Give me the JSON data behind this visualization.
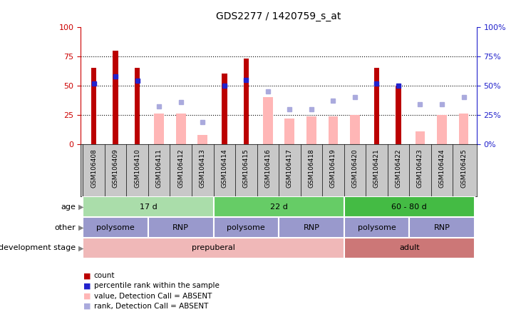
{
  "title": "GDS2277 / 1420759_s_at",
  "samples": [
    "GSM106408",
    "GSM106409",
    "GSM106410",
    "GSM106411",
    "GSM106412",
    "GSM106413",
    "GSM106414",
    "GSM106415",
    "GSM106416",
    "GSM106417",
    "GSM106418",
    "GSM106419",
    "GSM106420",
    "GSM106421",
    "GSM106422",
    "GSM106423",
    "GSM106424",
    "GSM106425"
  ],
  "red_bars": [
    65,
    80,
    65,
    0,
    0,
    0,
    60,
    73,
    0,
    0,
    0,
    0,
    0,
    65,
    50,
    0,
    0,
    0
  ],
  "pink_bars": [
    0,
    0,
    0,
    26,
    26,
    8,
    0,
    0,
    40,
    22,
    24,
    24,
    25,
    0,
    0,
    11,
    25,
    26
  ],
  "blue_squares": [
    52,
    58,
    54,
    0,
    0,
    0,
    50,
    55,
    0,
    0,
    0,
    0,
    0,
    52,
    50,
    0,
    0,
    0
  ],
  "light_blue_squares": [
    0,
    0,
    0,
    32,
    36,
    19,
    0,
    0,
    45,
    30,
    30,
    37,
    40,
    0,
    0,
    34,
    34,
    40
  ],
  "ylim": [
    0,
    100
  ],
  "yticks": [
    0,
    25,
    50,
    75,
    100
  ],
  "grid_lines": [
    25,
    50,
    75
  ],
  "red_bar_color": "#bb0000",
  "pink_bar_color": "#ffb6b6",
  "blue_sq_color": "#2222cc",
  "light_blue_sq_color": "#aaaadd",
  "axis_left_color": "#cc0000",
  "axis_right_color": "#2222cc",
  "xtick_bg_color": "#c8c8c8",
  "annotation_rows": [
    {
      "label": "age",
      "groups": [
        {
          "text": "17 d",
          "start": 0,
          "end": 5,
          "color": "#aaddaa"
        },
        {
          "text": "22 d",
          "start": 6,
          "end": 11,
          "color": "#66cc66"
        },
        {
          "text": "60 - 80 d",
          "start": 12,
          "end": 17,
          "color": "#44bb44"
        }
      ]
    },
    {
      "label": "other",
      "groups": [
        {
          "text": "polysome",
          "start": 0,
          "end": 2,
          "color": "#9999cc"
        },
        {
          "text": "RNP",
          "start": 3,
          "end": 5,
          "color": "#9999cc"
        },
        {
          "text": "polysome",
          "start": 6,
          "end": 8,
          "color": "#9999cc"
        },
        {
          "text": "RNP",
          "start": 9,
          "end": 11,
          "color": "#9999cc"
        },
        {
          "text": "polysome",
          "start": 12,
          "end": 14,
          "color": "#9999cc"
        },
        {
          "text": "RNP",
          "start": 15,
          "end": 17,
          "color": "#9999cc"
        }
      ]
    },
    {
      "label": "development stage",
      "groups": [
        {
          "text": "prepuberal",
          "start": 0,
          "end": 11,
          "color": "#f0b8b8"
        },
        {
          "text": "adult",
          "start": 12,
          "end": 17,
          "color": "#cc7777"
        }
      ]
    }
  ],
  "legend_items": [
    {
      "color": "#bb0000",
      "label": "count"
    },
    {
      "color": "#2222cc",
      "label": "percentile rank within the sample"
    },
    {
      "color": "#ffb6b6",
      "label": "value, Detection Call = ABSENT"
    },
    {
      "color": "#aaaadd",
      "label": "rank, Detection Call = ABSENT"
    }
  ]
}
